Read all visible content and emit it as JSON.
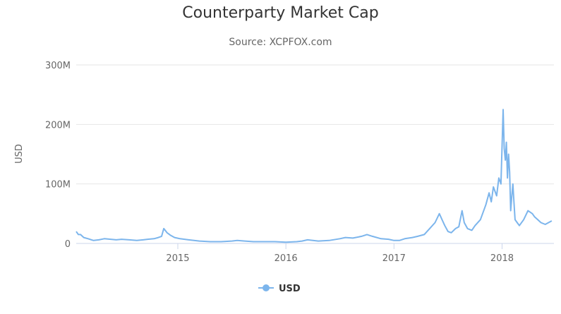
{
  "chart_data": {
    "type": "line",
    "title": "Counterparty Market Cap",
    "subtitle": "Source: XCPFOX.com",
    "xlabel": "",
    "ylabel": "USD",
    "ylim": [
      0,
      300000000
    ],
    "yticks": [
      {
        "value": 0,
        "label": "0"
      },
      {
        "value": 100000000,
        "label": "100M"
      },
      {
        "value": 200000000,
        "label": "200M"
      },
      {
        "value": 300000000,
        "label": "300M"
      }
    ],
    "xlim": [
      2014.06,
      2018.48
    ],
    "xticks": [
      {
        "value": 2015.0,
        "label": "2015"
      },
      {
        "value": 2016.0,
        "label": "2016"
      },
      {
        "value": 2017.0,
        "label": "2017"
      },
      {
        "value": 2018.0,
        "label": "2018"
      }
    ],
    "grid": true,
    "legend": "bottom-center",
    "colors": {
      "series": "#7cb5ec",
      "grid": "#e6e6e6",
      "axis": "#ccd6eb"
    },
    "series": [
      {
        "name": "USD",
        "x": [
          2014.06,
          2014.08,
          2014.1,
          2014.13,
          2014.17,
          2014.22,
          2014.27,
          2014.32,
          2014.38,
          2014.43,
          2014.48,
          2014.55,
          2014.62,
          2014.68,
          2014.72,
          2014.78,
          2014.82,
          2014.85,
          2014.87,
          2014.9,
          2014.93,
          2014.97,
          2015.02,
          2015.1,
          2015.2,
          2015.3,
          2015.4,
          2015.5,
          2015.55,
          2015.62,
          2015.7,
          2015.8,
          2015.9,
          2016.0,
          2016.1,
          2016.15,
          2016.2,
          2016.25,
          2016.3,
          2016.4,
          2016.5,
          2016.55,
          2016.62,
          2016.7,
          2016.75,
          2016.8,
          2016.88,
          2016.95,
          2017.0,
          2017.05,
          2017.1,
          2017.17,
          2017.22,
          2017.28,
          2017.33,
          2017.38,
          2017.42,
          2017.45,
          2017.47,
          2017.5,
          2017.53,
          2017.57,
          2017.6,
          2017.63,
          2017.65,
          2017.68,
          2017.72,
          2017.75,
          2017.8,
          2017.85,
          2017.88,
          2017.9,
          2017.92,
          2017.95,
          2017.97,
          2017.99,
          2018.01,
          2018.02,
          2018.03,
          2018.04,
          2018.05,
          2018.06,
          2018.07,
          2018.08,
          2018.09,
          2018.1,
          2018.11,
          2018.12,
          2018.14,
          2018.16,
          2018.2,
          2018.24,
          2018.28,
          2018.3,
          2018.33,
          2018.36,
          2018.4,
          2018.43,
          2018.46
        ],
        "values": [
          20000000,
          15000000,
          15000000,
          10000000,
          8000000,
          5000000,
          6000000,
          8000000,
          7000000,
          6000000,
          7000000,
          6000000,
          5000000,
          6000000,
          7000000,
          8000000,
          10000000,
          12000000,
          25000000,
          18000000,
          14000000,
          10000000,
          8000000,
          6000000,
          4000000,
          3000000,
          3000000,
          4000000,
          5000000,
          4000000,
          3000000,
          3000000,
          3000000,
          2000000,
          3000000,
          4000000,
          6000000,
          5000000,
          4000000,
          5000000,
          8000000,
          10000000,
          9000000,
          12000000,
          15000000,
          12000000,
          8000000,
          7000000,
          5000000,
          5000000,
          8000000,
          10000000,
          12000000,
          15000000,
          25000000,
          35000000,
          50000000,
          38000000,
          30000000,
          20000000,
          18000000,
          25000000,
          28000000,
          55000000,
          35000000,
          25000000,
          22000000,
          30000000,
          40000000,
          65000000,
          85000000,
          70000000,
          95000000,
          80000000,
          110000000,
          100000000,
          225000000,
          160000000,
          140000000,
          170000000,
          110000000,
          150000000,
          120000000,
          55000000,
          80000000,
          100000000,
          70000000,
          40000000,
          35000000,
          30000000,
          40000000,
          55000000,
          50000000,
          45000000,
          40000000,
          35000000,
          32000000,
          35000000,
          38000000
        ]
      }
    ]
  }
}
